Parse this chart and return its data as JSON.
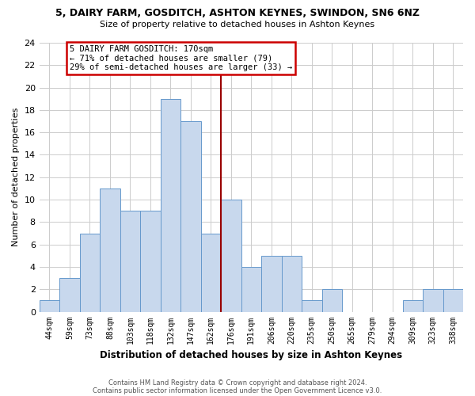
{
  "title": "5, DAIRY FARM, GOSDITCH, ASHTON KEYNES, SWINDON, SN6 6NZ",
  "subtitle": "Size of property relative to detached houses in Ashton Keynes",
  "xlabel": "Distribution of detached houses by size in Ashton Keynes",
  "ylabel": "Number of detached properties",
  "bin_labels": [
    "44sqm",
    "59sqm",
    "73sqm",
    "88sqm",
    "103sqm",
    "118sqm",
    "132sqm",
    "147sqm",
    "162sqm",
    "176sqm",
    "191sqm",
    "206sqm",
    "220sqm",
    "235sqm",
    "250sqm",
    "265sqm",
    "279sqm",
    "294sqm",
    "309sqm",
    "323sqm",
    "338sqm"
  ],
  "bar_heights": [
    1,
    3,
    7,
    11,
    9,
    9,
    19,
    17,
    7,
    10,
    4,
    5,
    5,
    1,
    2,
    0,
    0,
    0,
    1,
    2,
    2
  ],
  "bar_color": "#c8d8ed",
  "bar_edgecolor": "#6699cc",
  "grid_color": "#cccccc",
  "vline_color": "#990000",
  "annotation_line1": "5 DAIRY FARM GOSDITCH: 170sqm",
  "annotation_line2": "← 71% of detached houses are smaller (79)",
  "annotation_line3": "29% of semi-detached houses are larger (33) →",
  "ylim": [
    0,
    24
  ],
  "yticks": [
    0,
    2,
    4,
    6,
    8,
    10,
    12,
    14,
    16,
    18,
    20,
    22,
    24
  ],
  "footnote1": "Contains HM Land Registry data © Crown copyright and database right 2024.",
  "footnote2": "Contains public sector information licensed under the Open Government Licence v3.0.",
  "bg_color": "#ffffff",
  "plot_bg_color": "#ffffff"
}
